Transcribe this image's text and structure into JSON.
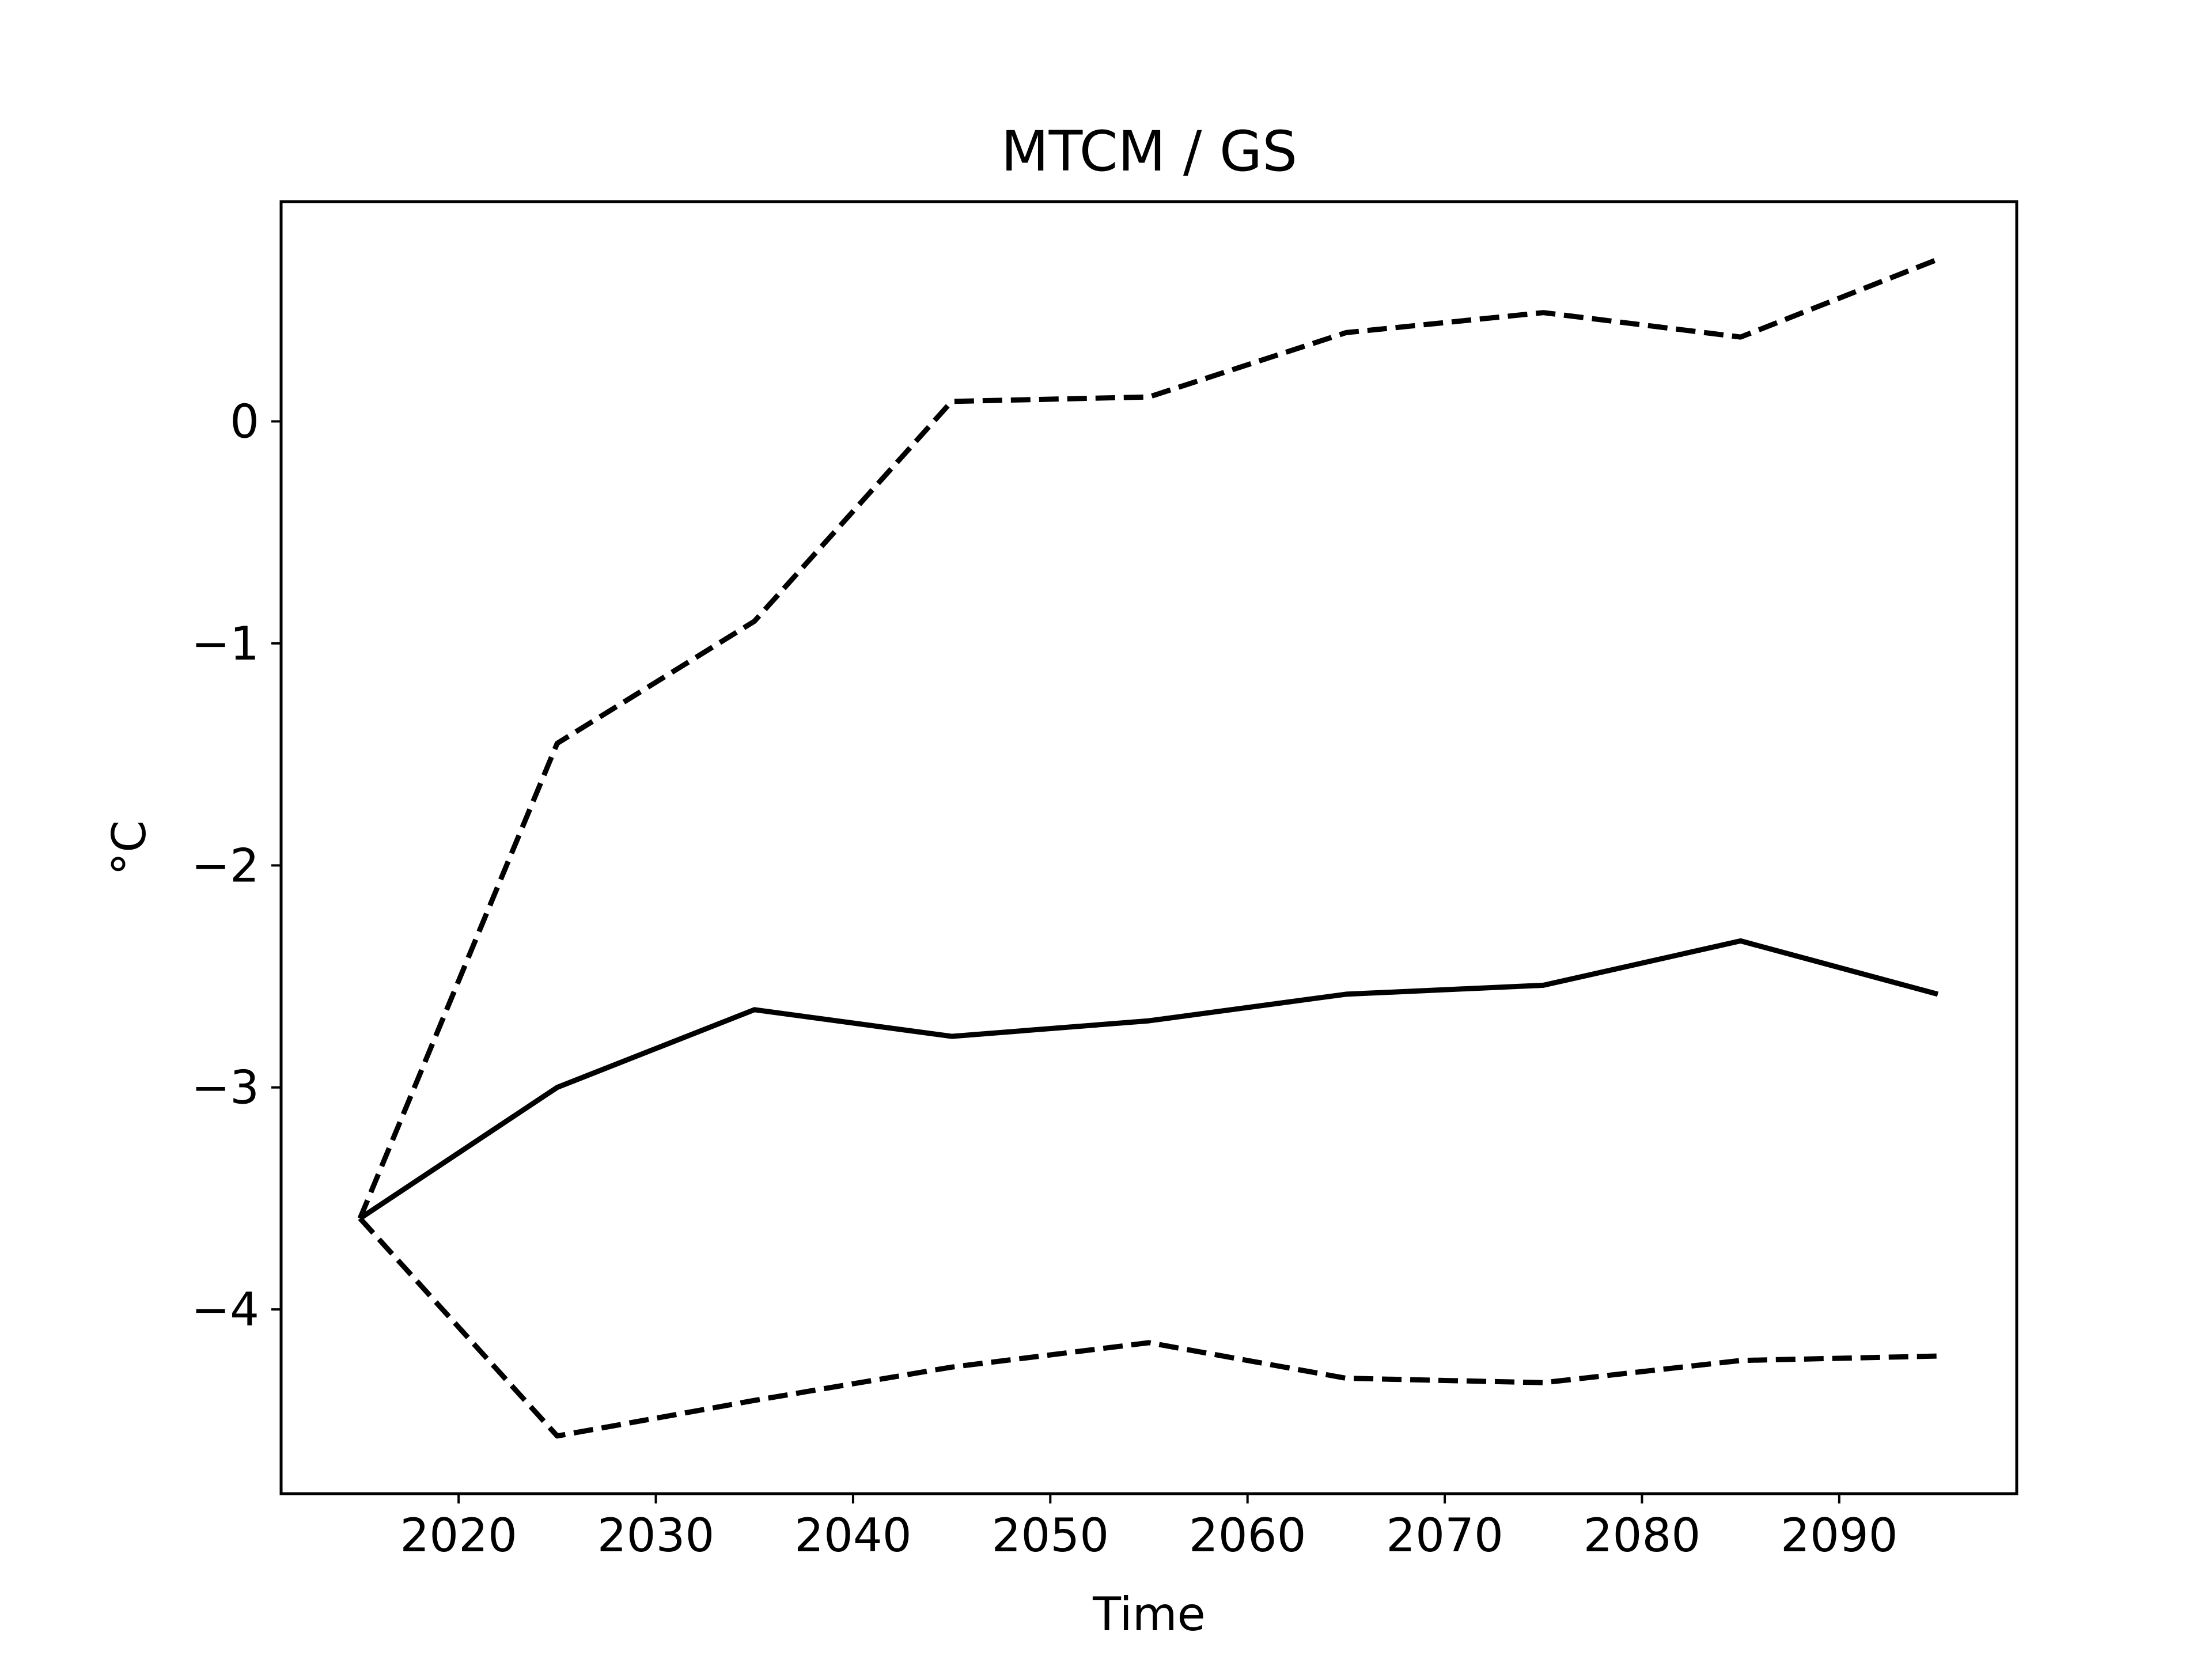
{
  "chart_data": {
    "type": "line",
    "title": "MTCM / GS",
    "xlabel": "Time",
    "ylabel": "°C",
    "x": [
      2015,
      2025,
      2035,
      2045,
      2055,
      2065,
      2075,
      2085,
      2095
    ],
    "xlim": [
      2011,
      2099
    ],
    "ylim": [
      -4.83,
      0.99
    ],
    "xticks": [
      2020,
      2030,
      2040,
      2050,
      2060,
      2070,
      2080,
      2090
    ],
    "yticks": [
      0,
      -1,
      -2,
      -3,
      -4
    ],
    "xtick_labels": [
      "2020",
      "2030",
      "2040",
      "2050",
      "2060",
      "2070",
      "2080",
      "2090"
    ],
    "ytick_labels": [
      "0",
      "−1",
      "−2",
      "−3",
      "−4"
    ],
    "grid": false,
    "series": [
      {
        "style": "dashed",
        "color": "#000000",
        "values": [
          -3.59,
          -1.45,
          -0.9,
          0.09,
          0.11,
          0.4,
          0.49,
          0.38,
          0.73
        ]
      },
      {
        "style": "solid",
        "color": "#000000",
        "values": [
          -3.59,
          -3.0,
          -2.65,
          -2.77,
          -2.7,
          -2.58,
          -2.54,
          -2.34,
          -2.58
        ]
      },
      {
        "style": "dashed",
        "color": "#000000",
        "values": [
          -3.59,
          -4.57,
          -4.41,
          -4.26,
          -4.15,
          -4.31,
          -4.33,
          -4.23,
          -4.21
        ]
      }
    ]
  }
}
